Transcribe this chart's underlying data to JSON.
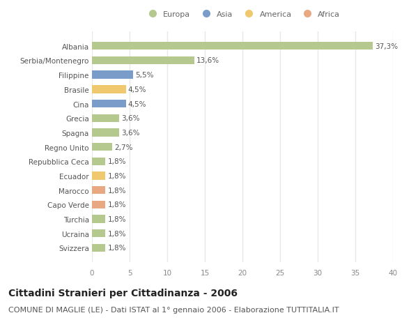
{
  "categories": [
    "Svizzera",
    "Ucraina",
    "Turchia",
    "Capo Verde",
    "Marocco",
    "Ecuador",
    "Repubblica Ceca",
    "Regno Unito",
    "Spagna",
    "Grecia",
    "Cina",
    "Brasile",
    "Filippine",
    "Serbia/Montenegro",
    "Albania"
  ],
  "values": [
    1.8,
    1.8,
    1.8,
    1.8,
    1.8,
    1.8,
    1.8,
    2.7,
    3.6,
    3.6,
    4.5,
    4.5,
    5.5,
    13.6,
    37.3
  ],
  "labels": [
    "1,8%",
    "1,8%",
    "1,8%",
    "1,8%",
    "1,8%",
    "1,8%",
    "1,8%",
    "2,7%",
    "3,6%",
    "3,6%",
    "4,5%",
    "4,5%",
    "5,5%",
    "13,6%",
    "37,3%"
  ],
  "colors": [
    "#b5c98e",
    "#b5c98e",
    "#b5c98e",
    "#e8a882",
    "#e8a882",
    "#f0c96e",
    "#b5c98e",
    "#b5c98e",
    "#b5c98e",
    "#b5c98e",
    "#7a9cc9",
    "#f0c96e",
    "#7a9cc9",
    "#b5c98e",
    "#b5c98e"
  ],
  "legend_labels": [
    "Europa",
    "Asia",
    "America",
    "Africa"
  ],
  "legend_colors": [
    "#b5c98e",
    "#7a9cc9",
    "#f0c96e",
    "#e8a882"
  ],
  "xlim": [
    0,
    40
  ],
  "xticks": [
    0,
    5,
    10,
    15,
    20,
    25,
    30,
    35,
    40
  ],
  "title": "Cittadini Stranieri per Cittadinanza - 2006",
  "subtitle": "COMUNE DI MAGLIE (LE) - Dati ISTAT al 1° gennaio 2006 - Elaborazione TUTTITALIA.IT",
  "bg_color": "#ffffff",
  "bar_height": 0.55,
  "title_fontsize": 10,
  "subtitle_fontsize": 8,
  "tick_fontsize": 7.5,
  "label_fontsize": 7.5
}
